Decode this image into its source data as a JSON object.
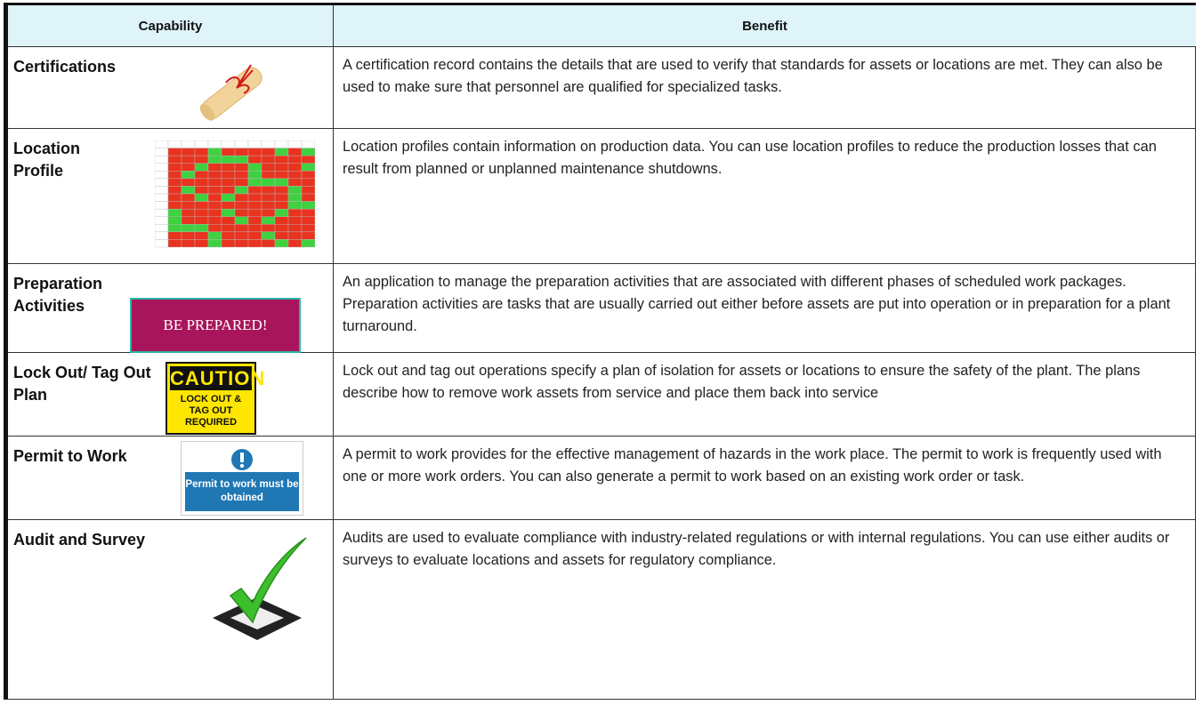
{
  "table": {
    "header": [
      "Capability",
      "Benefit"
    ],
    "rows": [
      {
        "capability": "Certifications",
        "benefit": "A certification record contains the details that are used to verify that standards for assets or locations are met. They can also be used to make sure that personnel are qualified for specialized tasks."
      },
      {
        "capability": "Location Profile",
        "benefit": "Location profiles contain information on production data. You can use location profiles to reduce the production losses that can result from planned or unplanned maintenance shutdowns."
      },
      {
        "capability": "Preparation Activities",
        "benefit": "An application to manage the preparation activities that are associated with different phases of scheduled work packages.  Preparation activities are tasks that are usually carried out either before assets are put into operation or in preparation for a plant turnaround.",
        "image_text": "BE PREPARED!"
      },
      {
        "capability": "Lock Out/ Tag Out Plan",
        "benefit": "Lock out and tag out operations specify a plan of isolation for assets or locations to ensure the safety of the plant.  The plans describe how to remove work assets from service and place them back into service",
        "image_title": "CAUTION",
        "image_text": "LOCK OUT & TAG OUT REQUIRED"
      },
      {
        "capability": "Permit to Work",
        "benefit": "A permit to work provides for the effective management of hazards in the work place. The permit to work is frequently used with one or more work orders. You can also generate a permit to work based on an existing work order or task.",
        "image_text": "Permit to work must be obtained"
      },
      {
        "capability": "Audit and Survey",
        "benefit": "Audits are used to evaluate compliance with industry-related regulations or with internal regulations. You can use either audits or surveys to evaluate locations and assets for regulatory compliance."
      }
    ]
  }
}
